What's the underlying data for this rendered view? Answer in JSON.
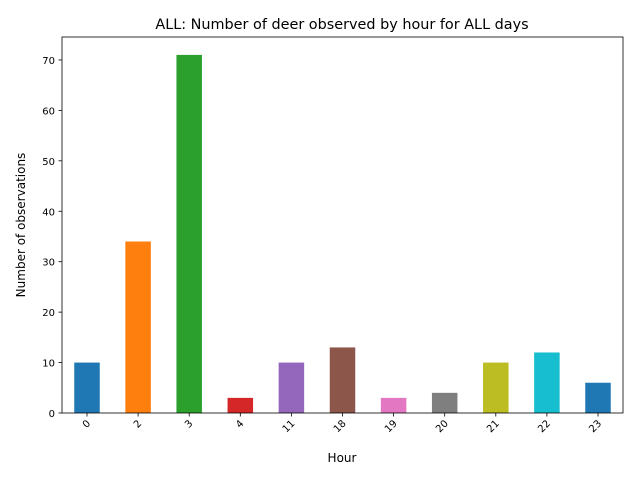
{
  "chart_data": {
    "type": "bar",
    "title": "ALL: Number of deer observed by hour for ALL days",
    "xlabel": "Hour",
    "ylabel": "Number of observations",
    "categories": [
      "0",
      "2",
      "3",
      "4",
      "11",
      "18",
      "19",
      "20",
      "21",
      "22",
      "23"
    ],
    "values": [
      10,
      34,
      71,
      3,
      10,
      13,
      3,
      4,
      10,
      12,
      6
    ],
    "colors": [
      "#1f77b4",
      "#ff7f0e",
      "#2ca02c",
      "#d62728",
      "#9467bd",
      "#8c564b",
      "#e377c2",
      "#7f7f7f",
      "#bcbd22",
      "#17becf",
      "#1f77b4"
    ],
    "ylim": [
      0,
      74.55
    ],
    "yticks": [
      0,
      10,
      20,
      30,
      40,
      50,
      60,
      70
    ],
    "grid": false,
    "legend": "none"
  }
}
